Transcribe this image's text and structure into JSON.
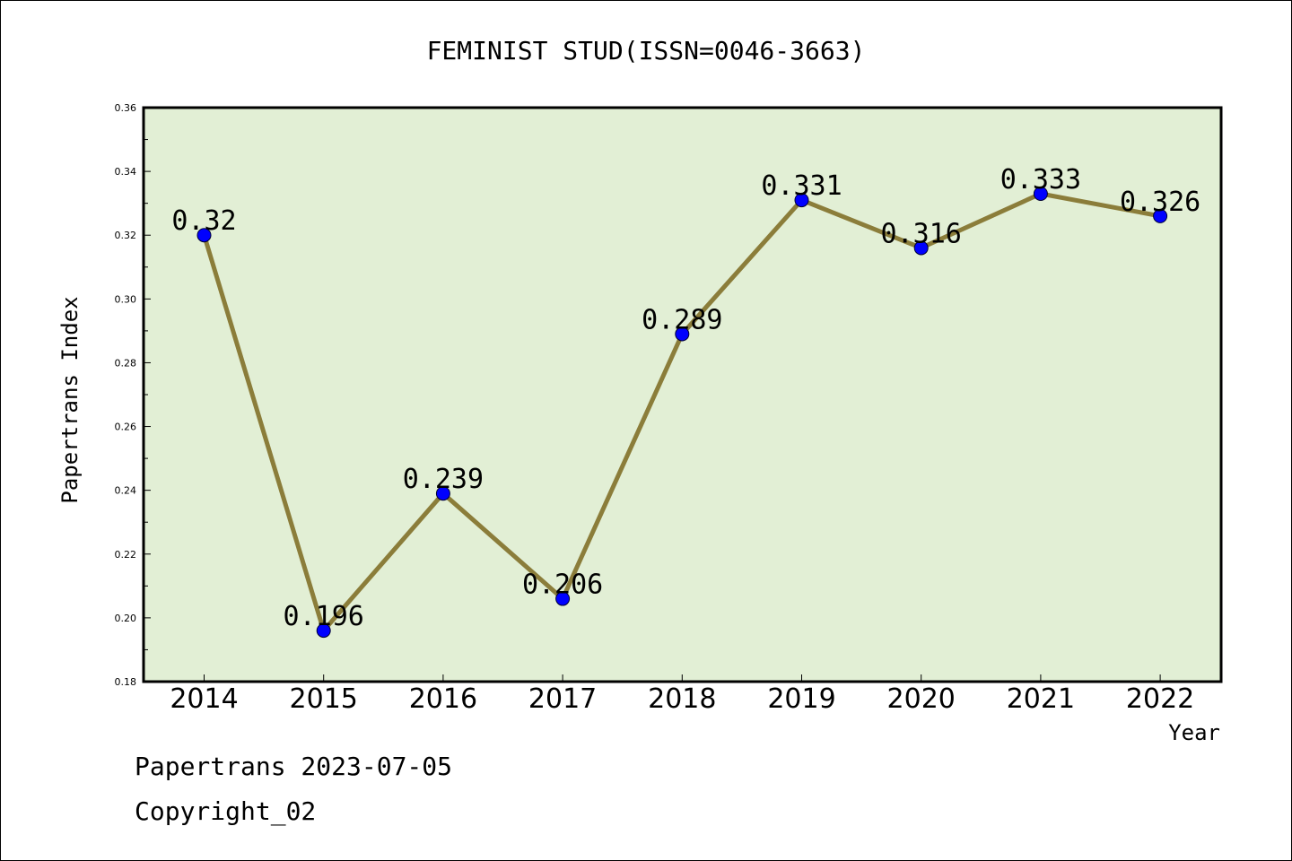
{
  "chart_data": {
    "type": "line",
    "title": "FEMINIST STUD(ISSN=0046-3663)",
    "xlabel": "Year",
    "ylabel": "Papertrans Index",
    "categories": [
      "2014",
      "2015",
      "2016",
      "2017",
      "2018",
      "2019",
      "2020",
      "2021",
      "2022"
    ],
    "values": [
      0.32,
      0.196,
      0.239,
      0.206,
      0.289,
      0.331,
      0.316,
      0.333,
      0.326
    ],
    "data_labels": [
      "0.32",
      "0.196",
      "0.239",
      "0.206",
      "0.289",
      "0.331",
      "0.316",
      "0.333",
      "0.326"
    ],
    "ylim": [
      0.18,
      0.36
    ],
    "yticks": [
      "0.18",
      "0.20",
      "0.22",
      "0.24",
      "0.26",
      "0.28",
      "0.30",
      "0.32",
      "0.34",
      "0.36"
    ],
    "grid": false,
    "legend": "none",
    "colors": {
      "plot_background": "#e2efd5",
      "line": "#8b7d3a",
      "marker": "#0000ff"
    }
  },
  "footer": {
    "line1": "Papertrans 2023-07-05",
    "line2": "Copyright_02"
  }
}
